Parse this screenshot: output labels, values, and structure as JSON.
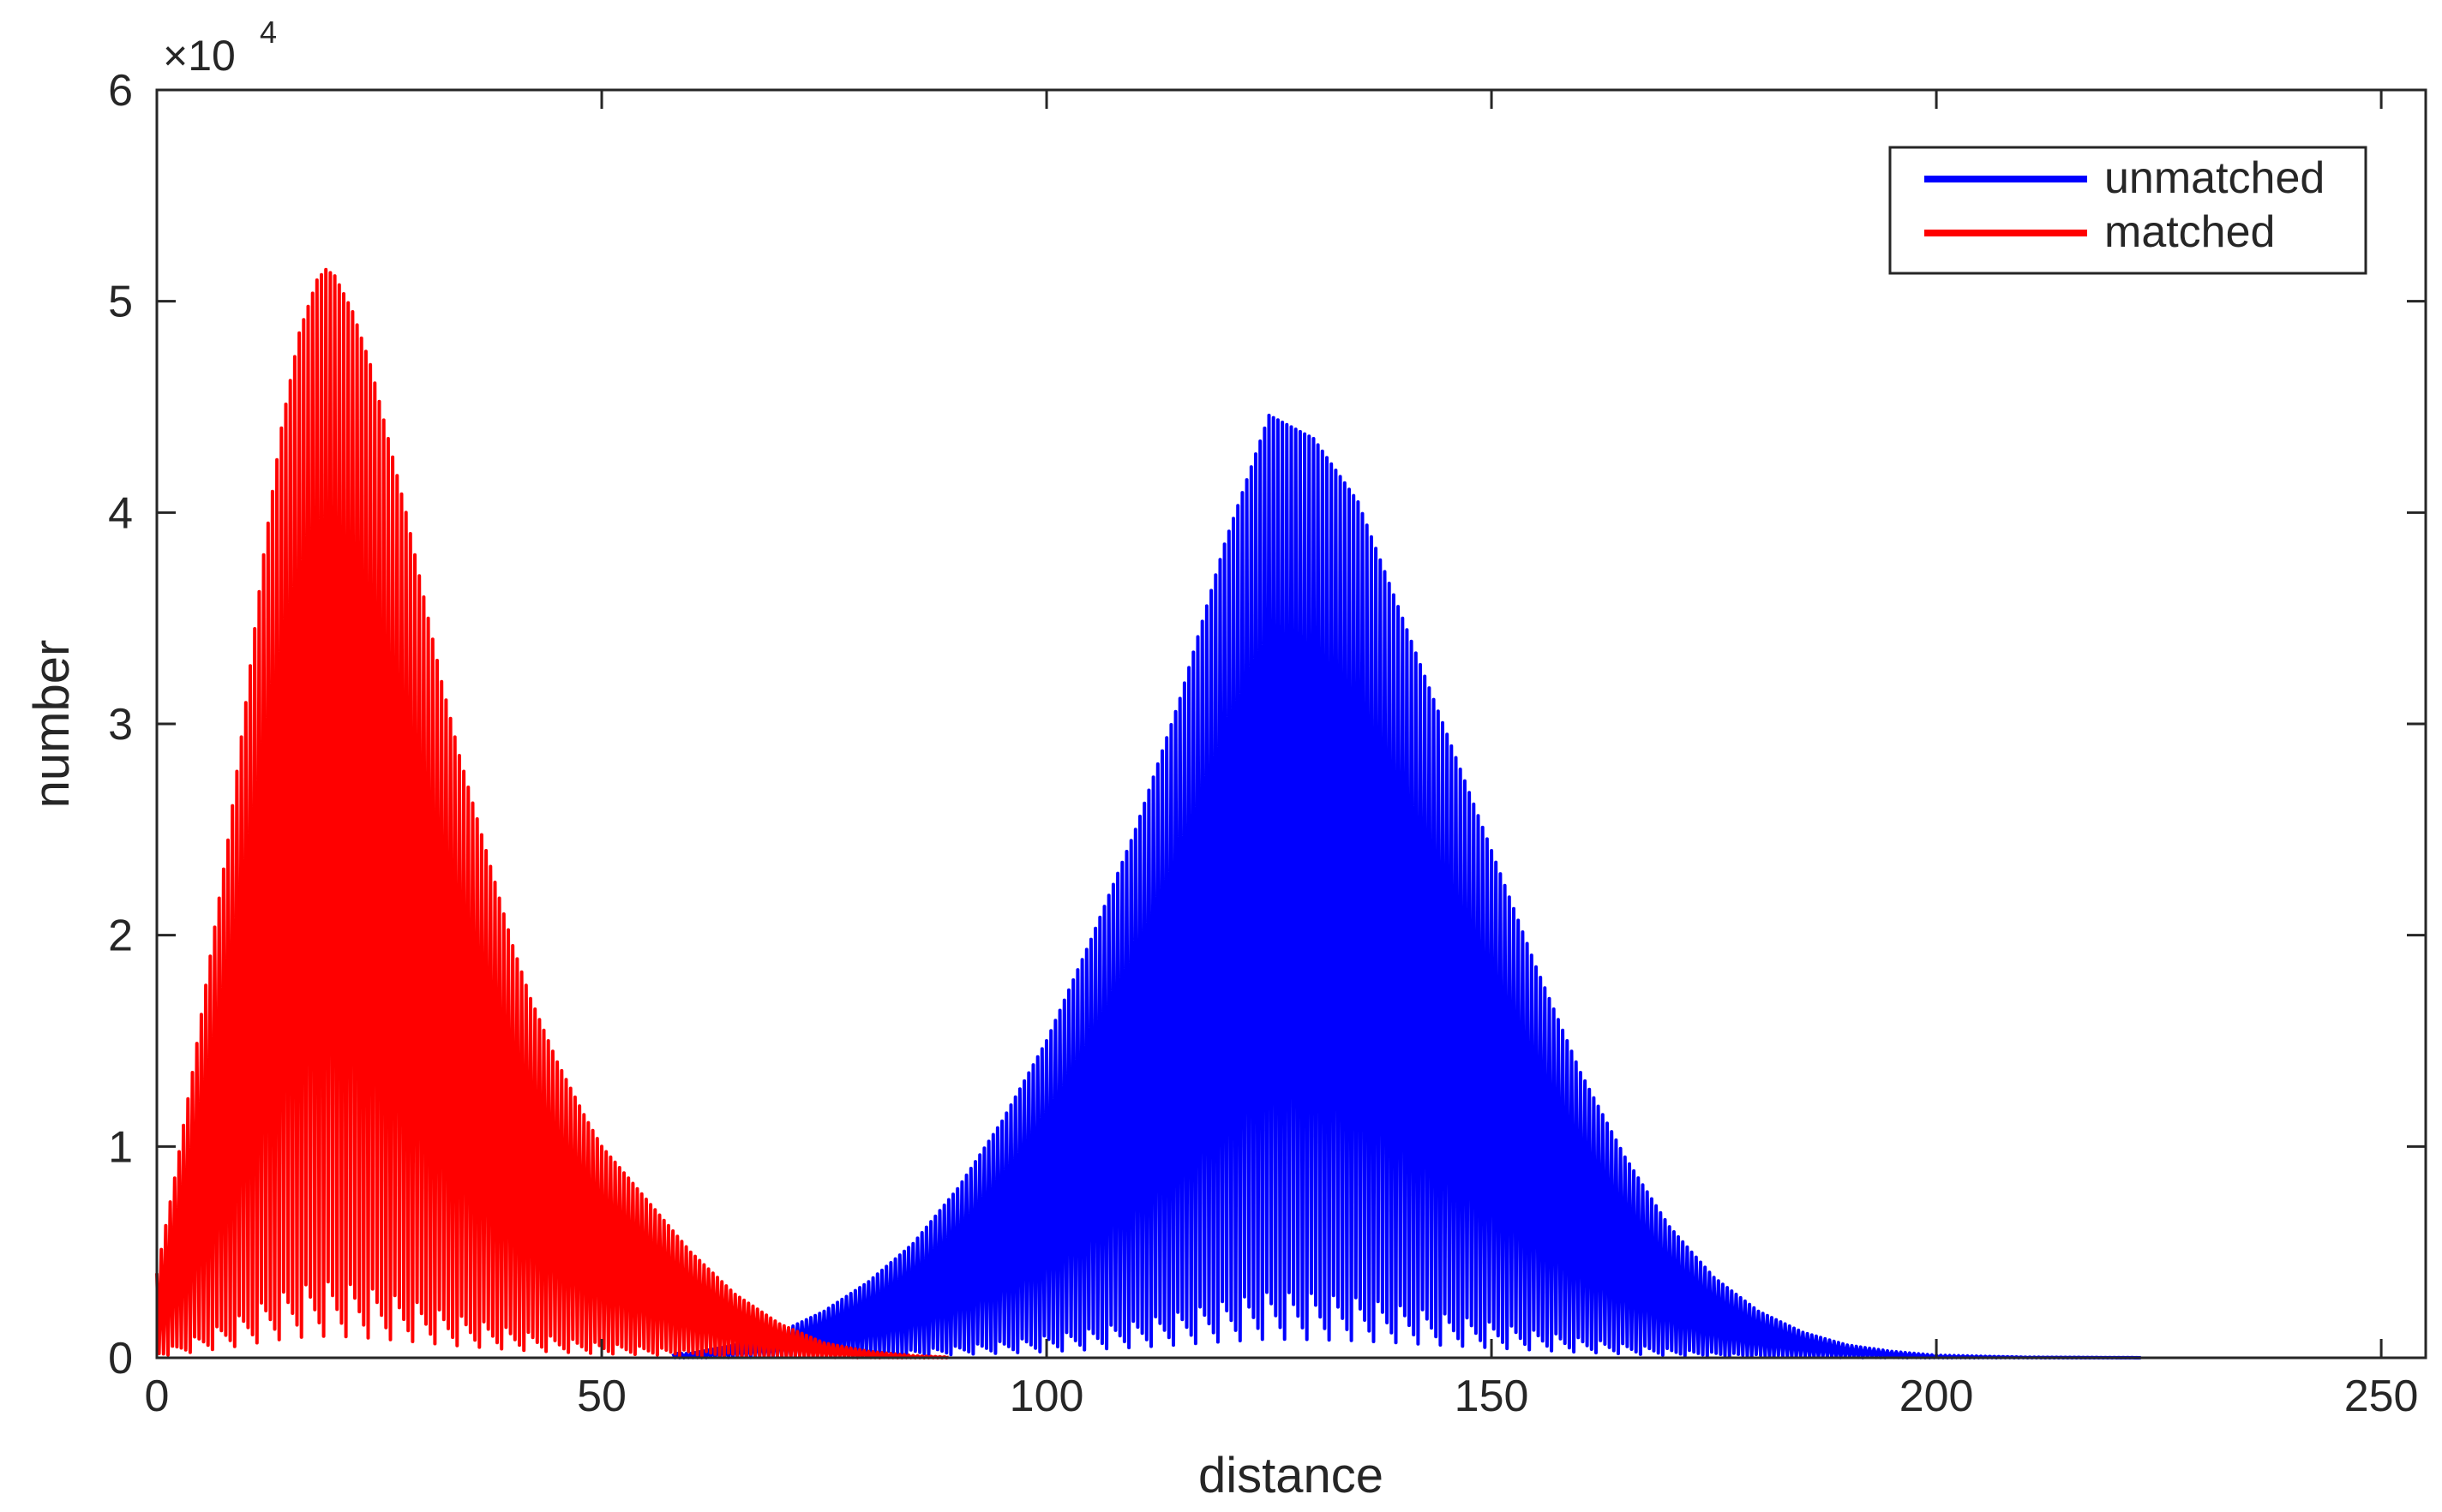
{
  "chart_data": {
    "type": "line",
    "xlabel": "distance",
    "ylabel": "number",
    "xlim": [
      0,
      255
    ],
    "ylim": [
      0,
      60000
    ],
    "y_scale_exponent_label": "×10",
    "y_scale_exponent_power": "4",
    "xticks": [
      0,
      50,
      100,
      150,
      200,
      250
    ],
    "xtick_labels": [
      "0",
      "50",
      "100",
      "150",
      "200",
      "250"
    ],
    "yticks": [
      0,
      10000,
      20000,
      30000,
      40000,
      50000,
      60000
    ],
    "ytick_labels": [
      "0",
      "1",
      "2",
      "3",
      "4",
      "5",
      "6"
    ],
    "grid": false,
    "legend_position": "top-right",
    "series": [
      {
        "name": "unmatched",
        "color": "#0000ff",
        "x_range": [
          58,
          223
        ],
        "peak_x": 125,
        "peak_y": 44600,
        "envelope": [
          [
            60,
            200
          ],
          [
            65,
            600
          ],
          [
            70,
            1200
          ],
          [
            75,
            2200
          ],
          [
            80,
            3600
          ],
          [
            85,
            5400
          ],
          [
            90,
            8000
          ],
          [
            95,
            11200
          ],
          [
            100,
            15000
          ],
          [
            105,
            19800
          ],
          [
            110,
            25000
          ],
          [
            115,
            31200
          ],
          [
            120,
            38500
          ],
          [
            125,
            44600
          ],
          [
            130,
            43500
          ],
          [
            135,
            40500
          ],
          [
            140,
            35000
          ],
          [
            145,
            29500
          ],
          [
            150,
            24000
          ],
          [
            155,
            18500
          ],
          [
            160,
            13500
          ],
          [
            165,
            9500
          ],
          [
            170,
            6200
          ],
          [
            175,
            3800
          ],
          [
            180,
            2200
          ],
          [
            185,
            1200
          ],
          [
            190,
            600
          ],
          [
            195,
            300
          ],
          [
            200,
            120
          ],
          [
            210,
            30
          ],
          [
            223,
            5
          ]
        ]
      },
      {
        "name": "matched",
        "color": "#ff0000",
        "x_range": [
          0,
          89
        ],
        "peak_x": 19,
        "peak_y": 51500,
        "envelope": [
          [
            0,
            4000
          ],
          [
            2,
            8500
          ],
          [
            4,
            13500
          ],
          [
            6,
            19000
          ],
          [
            8,
            24500
          ],
          [
            10,
            31000
          ],
          [
            12,
            38000
          ],
          [
            14,
            44000
          ],
          [
            16,
            48500
          ],
          [
            18,
            51000
          ],
          [
            19,
            51500
          ],
          [
            20,
            51200
          ],
          [
            22,
            49500
          ],
          [
            24,
            47000
          ],
          [
            26,
            43500
          ],
          [
            28,
            40000
          ],
          [
            30,
            36000
          ],
          [
            32,
            32000
          ],
          [
            34,
            28500
          ],
          [
            36,
            25500
          ],
          [
            38,
            22500
          ],
          [
            40,
            19500
          ],
          [
            42,
            17000
          ],
          [
            45,
            14000
          ],
          [
            48,
            11500
          ],
          [
            50,
            10000
          ],
          [
            55,
            7500
          ],
          [
            60,
            5000
          ],
          [
            65,
            3000
          ],
          [
            70,
            1600
          ],
          [
            75,
            700
          ],
          [
            80,
            300
          ],
          [
            85,
            100
          ],
          [
            89,
            30
          ]
        ]
      }
    ]
  }
}
